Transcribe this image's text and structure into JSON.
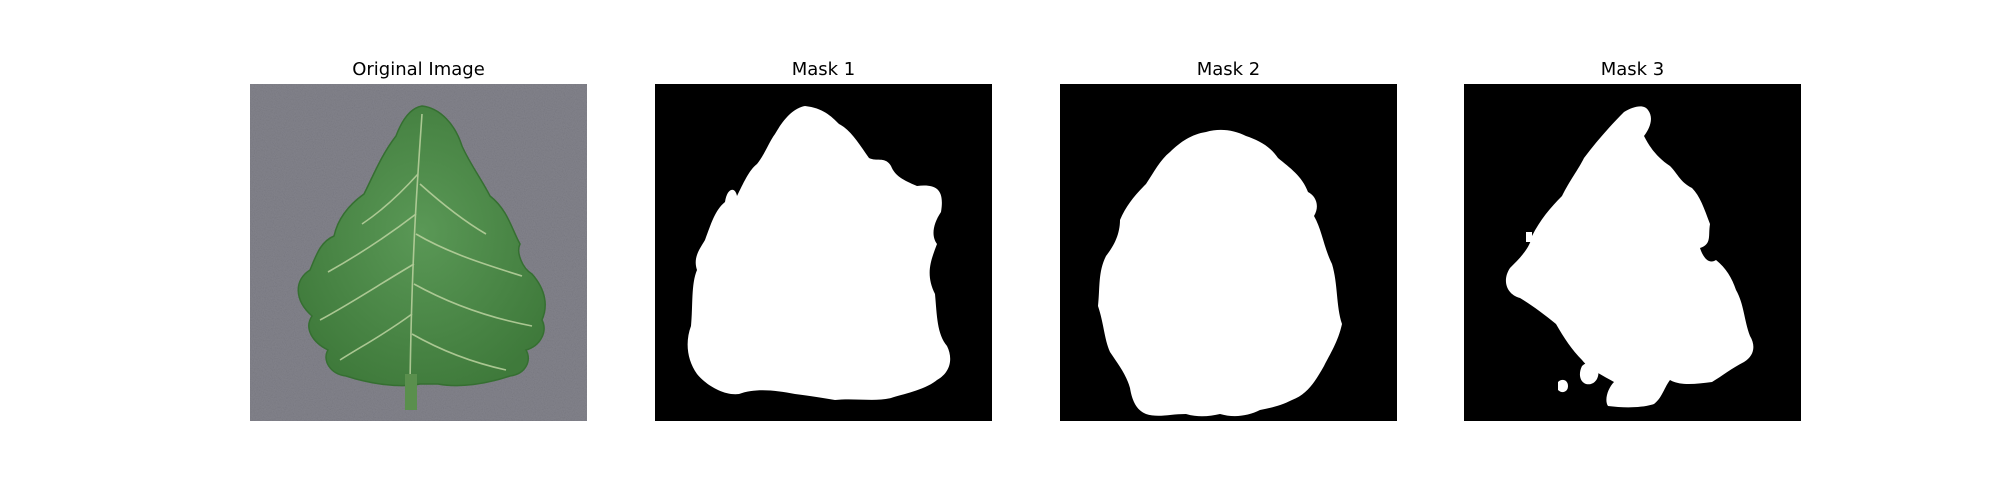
{
  "figure": {
    "panels": [
      {
        "title": "Original Image",
        "kind": "photo",
        "content": "leaf"
      },
      {
        "title": "Mask 1",
        "kind": "mask",
        "content": "leaf-mask"
      },
      {
        "title": "Mask 2",
        "kind": "mask",
        "content": "leaf-mask"
      },
      {
        "title": "Mask 3",
        "kind": "mask",
        "content": "leaf-mask"
      }
    ],
    "colors": {
      "background": "#ffffff",
      "photo_background": "#808088",
      "leaf_fill": "#4e8a4a",
      "leaf_edge": "#3e7639",
      "leaf_vein": "#b7cf9c",
      "mask_background": "#000000",
      "mask_foreground": "#ffffff"
    }
  }
}
